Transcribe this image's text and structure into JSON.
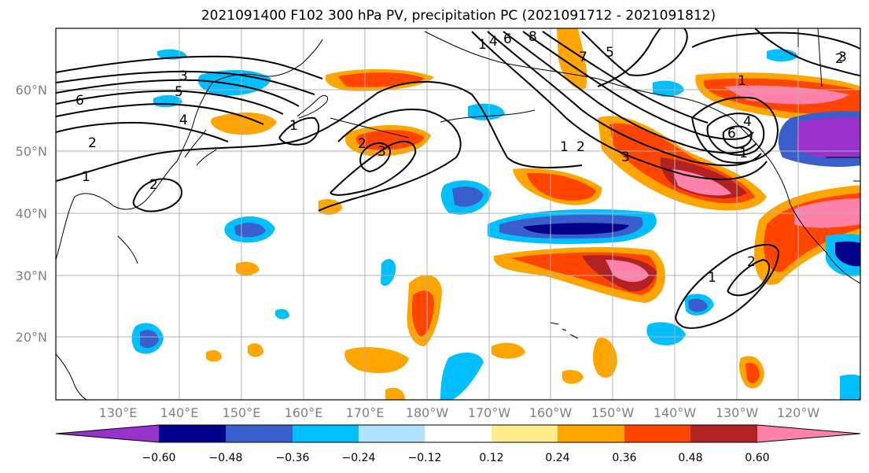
{
  "title": "2021091400 F102 300 hPa PV, precipitation PC (2021091712 - 2021091812)",
  "lat_labels": [
    "60°N",
    "50°N",
    "40°N",
    "30°N",
    "20°N"
  ],
  "lon_labels": [
    "130°E",
    "140°E",
    "150°E",
    "160°E",
    "170°E",
    "180°W",
    "170°W",
    "160°W",
    "150°W",
    "140°W",
    "130°W",
    "120°W"
  ],
  "colorbar": {
    "ticks": [
      "−0.60",
      "−0.48",
      "−0.36",
      "−0.24",
      "−0.12",
      "0.12",
      "0.24",
      "0.36",
      "0.48",
      "0.60"
    ],
    "colors": [
      "#9932cc",
      "#00008b",
      "#3a5fcd",
      "#00bfff",
      "#b0e2ff",
      "#ffffff",
      "#ffec8b",
      "#ffa500",
      "#ff4500",
      "#b22222",
      "#ff82ab"
    ]
  },
  "contour_labels": [
    "6",
    "3",
    "5",
    "4",
    "2",
    "1",
    "2",
    "1",
    "2",
    "3",
    "1",
    "4",
    "6",
    "8",
    "5",
    "7",
    "1",
    "2",
    "3",
    "1",
    "4",
    "6",
    "1",
    "2",
    "1",
    "2",
    "3"
  ]
}
